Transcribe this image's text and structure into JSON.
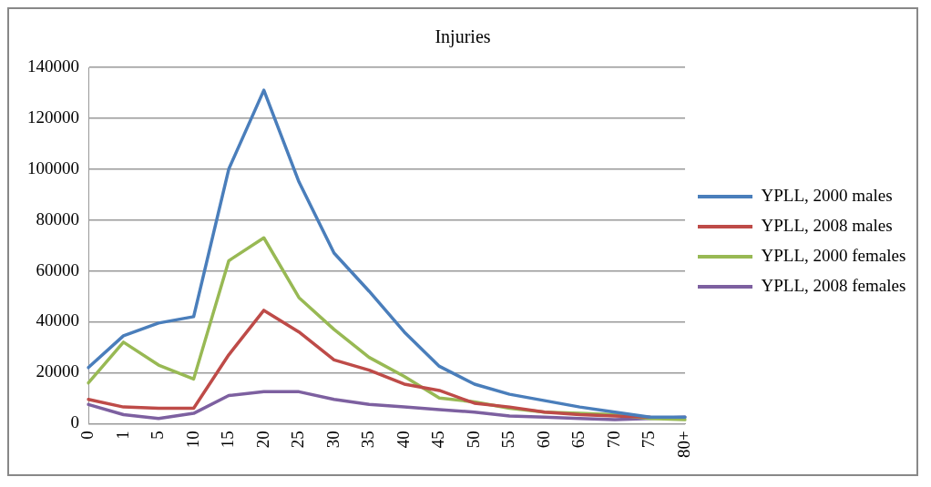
{
  "chart_data": {
    "type": "line",
    "title": "Injuries",
    "categories": [
      "0",
      "1",
      "5",
      "10",
      "15",
      "20",
      "25",
      "30",
      "35",
      "40",
      "45",
      "50",
      "55",
      "60",
      "65",
      "70",
      "75",
      "80+"
    ],
    "series": [
      {
        "name": "YPLL, 2000 males",
        "color": "#4a7ebb",
        "values": [
          22000,
          34500,
          39500,
          42000,
          100000,
          131000,
          95000,
          67000,
          52000,
          36000,
          22500,
          15500,
          11500,
          9000,
          6500,
          4500,
          2500,
          2500
        ]
      },
      {
        "name": "YPLL, 2008 males",
        "color": "#be4b48",
        "values": [
          9500,
          6500,
          6000,
          6000,
          27000,
          44500,
          36000,
          25000,
          21000,
          15500,
          13000,
          8000,
          6500,
          4500,
          3500,
          3000,
          2500,
          null
        ]
      },
      {
        "name": "YPLL, 2000 females",
        "color": "#98b954",
        "values": [
          16000,
          32000,
          23000,
          17500,
          64000,
          73000,
          49500,
          37000,
          26000,
          18500,
          10000,
          8500,
          6000,
          4500,
          4000,
          3500,
          2000,
          1500
        ]
      },
      {
        "name": "YPLL, 2008 females",
        "color": "#7d60a0",
        "values": [
          7500,
          3500,
          2000,
          4000,
          11000,
          12500,
          12500,
          9500,
          7500,
          6500,
          5500,
          4500,
          3000,
          2500,
          2000,
          1500,
          2000,
          2500
        ]
      }
    ],
    "ylim": [
      0,
      140000
    ],
    "yticks": [
      0,
      20000,
      40000,
      60000,
      80000,
      100000,
      120000,
      140000
    ],
    "grid": "y",
    "legend": "right",
    "marker": "none",
    "line_style": "solid"
  }
}
